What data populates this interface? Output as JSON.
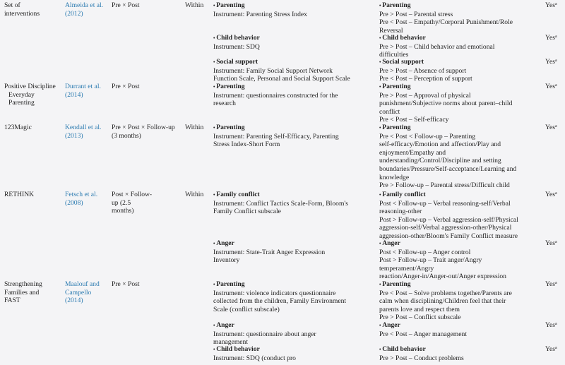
{
  "colors": {
    "background": "#f4f4f6",
    "text": "#222222",
    "reference_link": "#2a7ab0"
  },
  "bullet": "•",
  "rows": [
    {
      "program": [
        "Set of",
        "interventions"
      ],
      "reference": [
        "Almeida et al.",
        "(2012)"
      ],
      "design": [
        "Pre × Post"
      ],
      "comparison": "Within",
      "outcomes": [
        {
          "title": "Parenting",
          "lines": [
            "Instrument: Parenting Stress Index"
          ]
        },
        {
          "title": "Child behavior",
          "lines": [
            "Instrument: SDQ"
          ]
        },
        {
          "title": "Social support",
          "lines": [
            "Instrument: Family Social Support Network",
            "Function Scale, Personal and Social Support Scale"
          ]
        }
      ],
      "results": [
        {
          "title": "Parenting",
          "lines": [
            "Pre > Post – Parental stress",
            "Pre < Post – Empathy/Corporal Punishment/Role",
            "Reversal"
          ],
          "effect": "Yes",
          "note": "a"
        },
        {
          "title": "Child behavior",
          "lines": [
            "Pre > Post – Child behavior and emotional",
            "difficulties"
          ],
          "effect": "Yes",
          "note": "a"
        },
        {
          "title": "Social support",
          "lines": [
            "Pre > Post – Absence of support",
            "Pre < Post – Perception of support"
          ],
          "effect": "Yes",
          "note": "a"
        }
      ]
    },
    {
      "program": [
        "Positive Discipline",
        "Everyday",
        "Parenting"
      ],
      "reference": [
        "Durrant et al.",
        "(2014)"
      ],
      "design": [
        "Pre × Post"
      ],
      "comparison": "",
      "outcomes": [
        {
          "title": "Parenting",
          "lines": [
            "Instrument: questionnaires constructed for the",
            "research"
          ]
        }
      ],
      "results": [
        {
          "title": "Parenting",
          "lines": [
            "Pre > Post – Approval of physical",
            "punishment/Subjective norms about parent–child",
            "conflict",
            "Pre < Post – Self-efficacy"
          ],
          "effect": "Yes",
          "note": "a"
        }
      ]
    },
    {
      "program": [
        "123Magic"
      ],
      "reference": [
        "Kendall et al.",
        "(2013)"
      ],
      "design": [
        "Pre × Post × Follow-up",
        "(3 months)"
      ],
      "comparison": "Within",
      "outcomes": [
        {
          "title": "Parenting",
          "lines": [
            "Instrument: Parenting Self-Efficacy, Parenting",
            "Stress Index-Short Form"
          ]
        }
      ],
      "results": [
        {
          "title": "Parenting",
          "lines": [
            "Pre < Post < Follow-up – Parenting",
            "self-efficacy/Emotion and affection/Play and",
            "enjoyment/Empathy and",
            "understanding/Control/Discipline and setting",
            "boundaries/Pressure/Self-acceptance/Learning and",
            "knowledge",
            "Pre > Follow-up – Parental stress/Difficult child"
          ],
          "effect": "Yes",
          "note": "a"
        }
      ]
    },
    {
      "program": [
        "RETHINK"
      ],
      "reference": [
        "Fetsch et al.",
        "(2008)"
      ],
      "design": [
        "Post × Follow-",
        "up (2.5",
        "months)"
      ],
      "comparison": "Within",
      "outcomes": [
        {
          "title": "Family conflict",
          "lines": [
            "Instrument: Conflict Tactics Scale-Form, Bloom's",
            "Family Conflict subscale"
          ]
        },
        {
          "title": "Anger",
          "lines": [
            "Instrument: State-Trait Anger Expression",
            "Inventory"
          ]
        }
      ],
      "results": [
        {
          "title": "Family conflict",
          "lines": [
            "Post < Follow-up – Verbal reasoning-self/Verbal",
            "reasoning-other",
            "Post > Follow-up – Verbal aggression-self/Physical",
            "aggression-self/Verbal aggression-other/Physical",
            "aggression-other/Bloom's Family Conflict measure"
          ],
          "effect": "Yes",
          "note": "a"
        },
        {
          "title": "Anger",
          "lines": [
            "Post < Follow-up – Anger control",
            "Post > Follow-up – Trait anger/Angry",
            "temperament/Angry",
            "reaction/Anger-in/Anger-out/Anger expression"
          ],
          "effect": "Yes",
          "note": "a"
        }
      ]
    },
    {
      "program": [
        "Strengthening",
        "Families and",
        "FAST"
      ],
      "reference": [
        "Maalouf and",
        "Campello",
        "(2014)"
      ],
      "design": [
        "Pre × Post"
      ],
      "comparison": "",
      "outcomes": [
        {
          "title": "Parenting",
          "lines": [
            "Instrument: violence indicators questionnaire",
            "collected from the children, Family Environment",
            "Scale (conflict subscale)"
          ]
        },
        {
          "title": "Anger",
          "lines": [
            "Instrument: questionnaire about anger",
            "management"
          ]
        },
        {
          "title": "Child behavior",
          "lines": [
            "Instrument: SDQ (conduct pro"
          ]
        }
      ],
      "results": [
        {
          "title": "Parenting",
          "lines": [
            "Pre < Post – Solve problems together/Parents are",
            "calm when disciplining/Children feel that their",
            "parents love and respect them",
            "Pre > Post – Conflict subscale"
          ],
          "effect": "Yes",
          "note": "a"
        },
        {
          "title": "Anger",
          "lines": [
            "Pre < Post – Anger management"
          ],
          "effect": "Yes",
          "note": "a"
        },
        {
          "title": "Child behavior",
          "lines": [
            "Pre > Post – Conduct problems"
          ],
          "effect": "Yes",
          "note": "a"
        }
      ]
    }
  ]
}
